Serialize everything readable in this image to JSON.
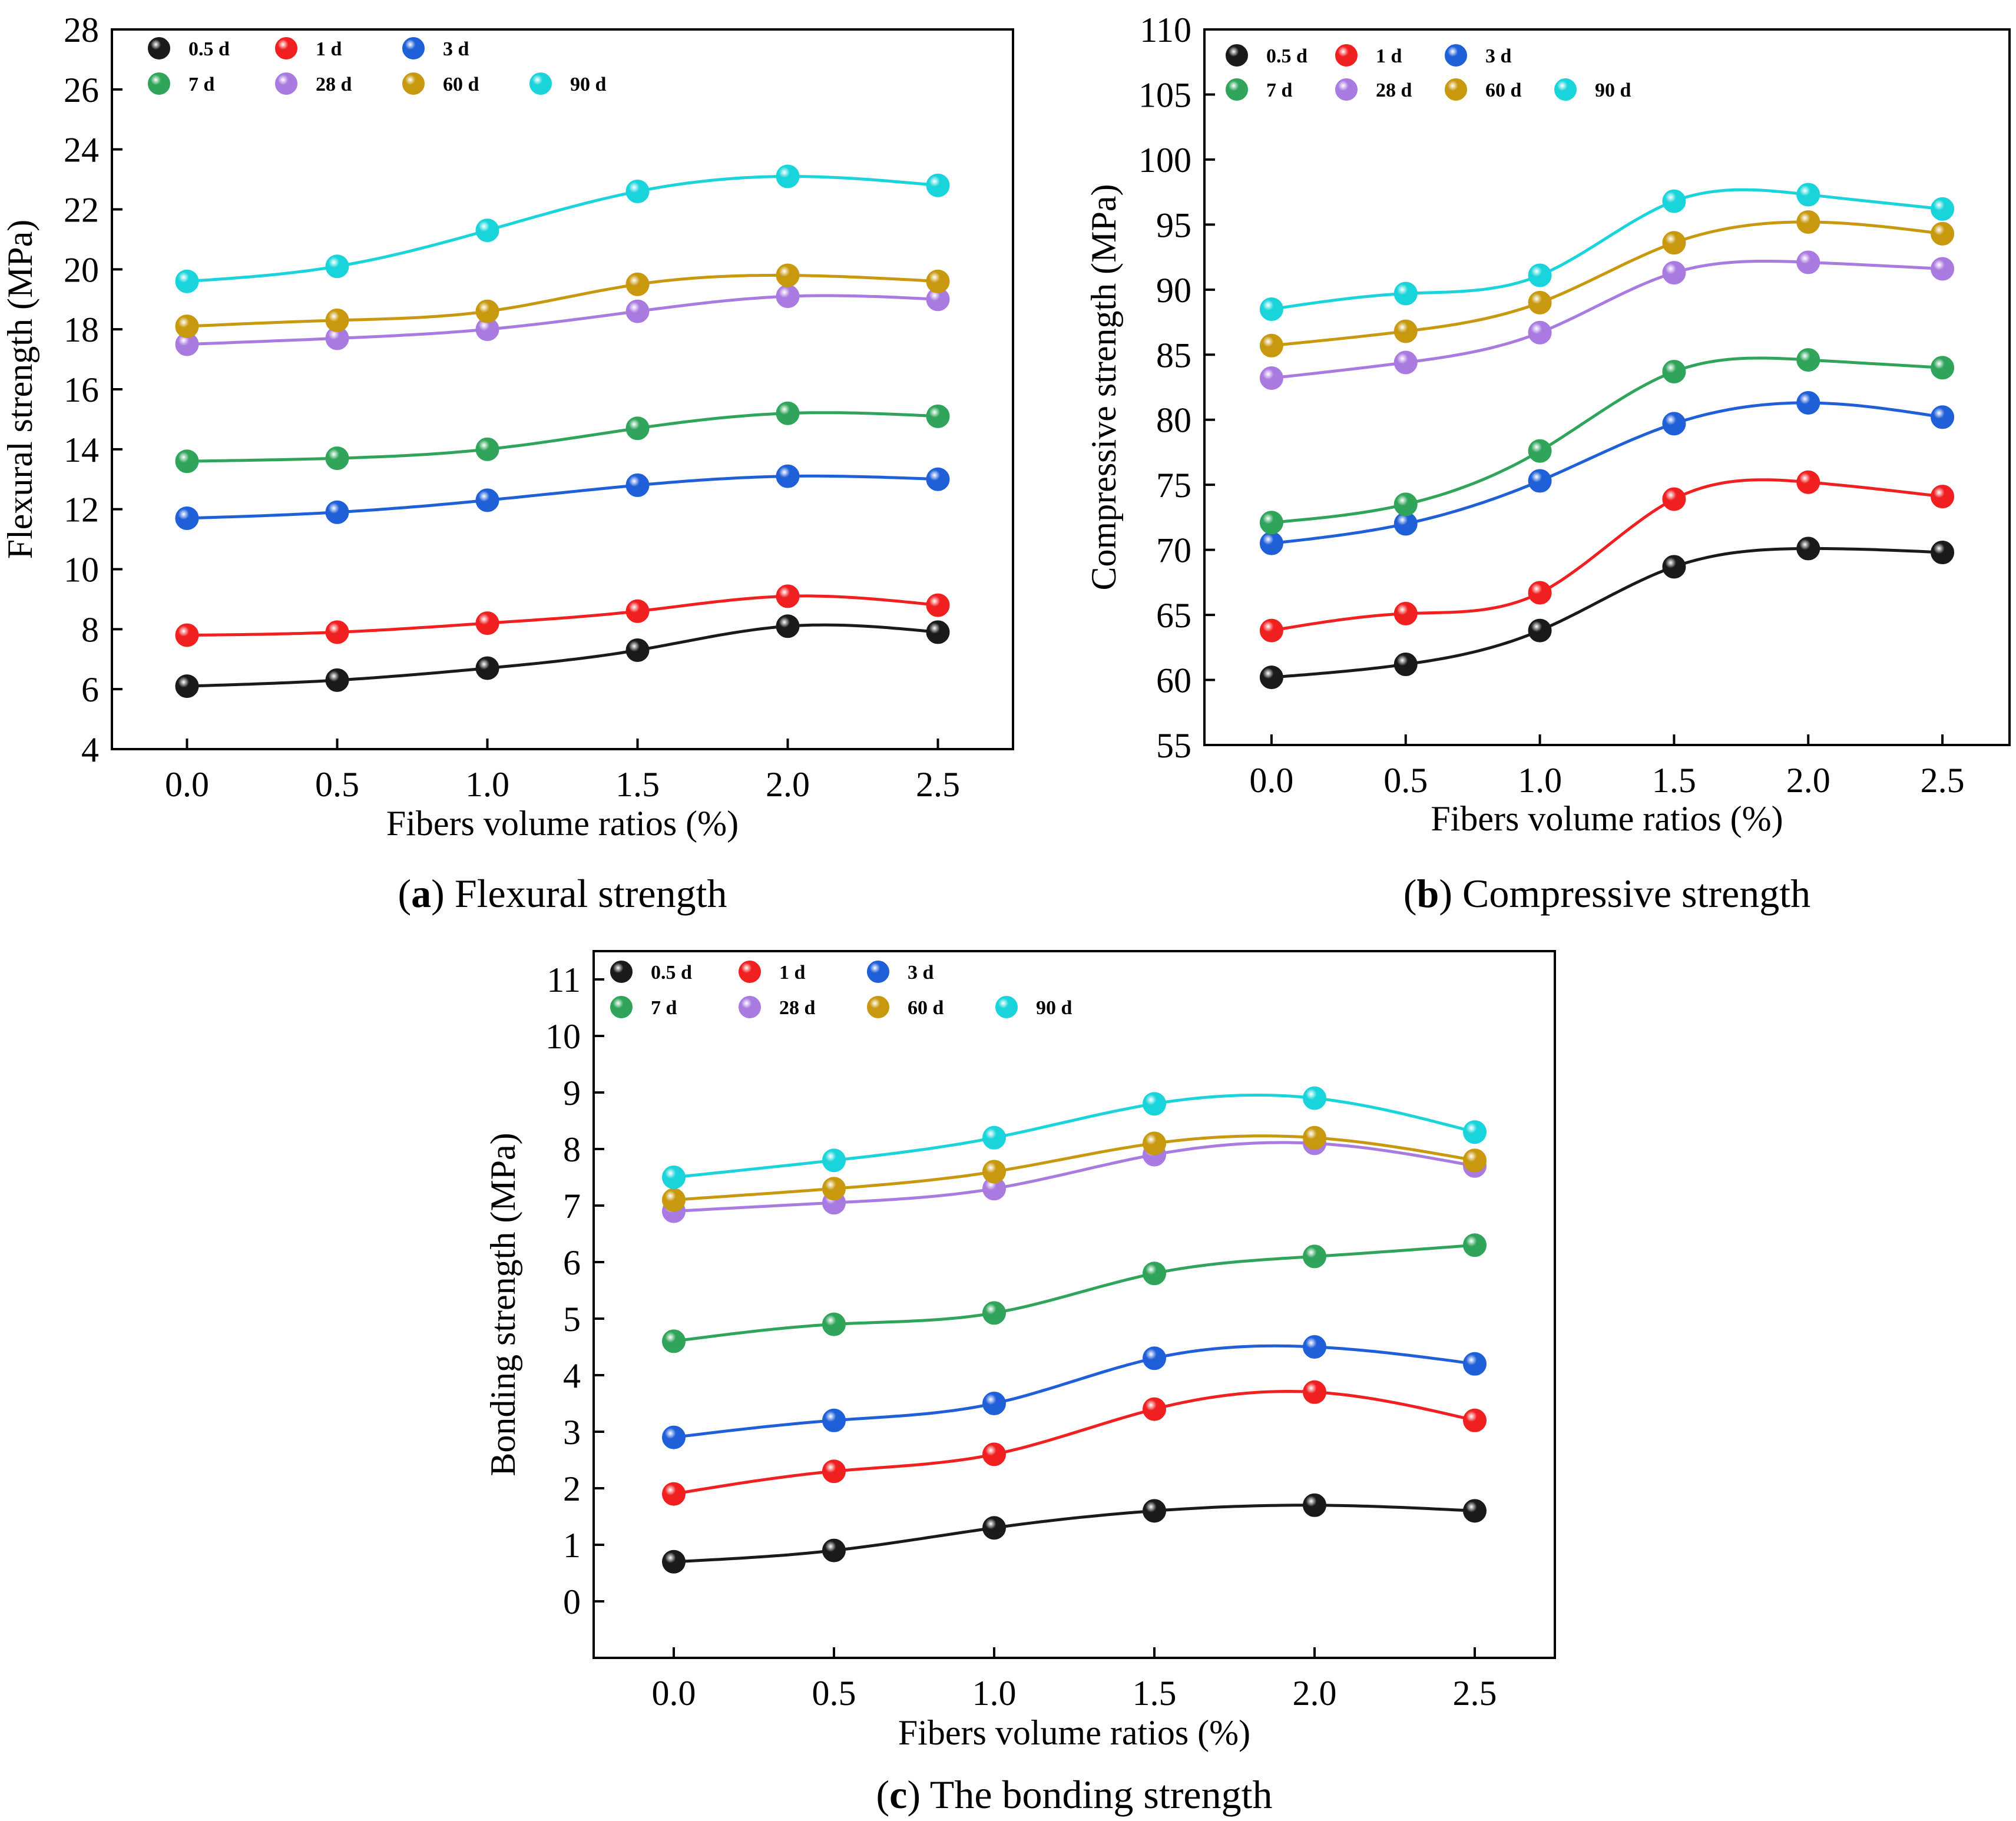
{
  "colors": {
    "0.5 d": "#1a1a1a",
    "1 d": "#f02020",
    "3 d": "#1f5fd8",
    "7 d": "#2fa45a",
    "28 d": "#a97be0",
    "60 d": "#c8980f",
    "90 d": "#19d4da"
  },
  "chart_data": [
    {
      "id": "a",
      "type": "scatter",
      "caption_letter": "a",
      "caption_text": "Flexural strength",
      "xlabel": "Fibers volume ratios (%)",
      "ylabel": "Flexural strength (MPa)",
      "xlim": [
        -0.25,
        2.75
      ],
      "ylim": [
        4,
        28
      ],
      "xticks": [
        "0.0",
        "0.5",
        "1.0",
        "1.5",
        "2.0",
        "2.5"
      ],
      "yticks": [
        "4",
        "6",
        "8",
        "10",
        "12",
        "14",
        "16",
        "18",
        "20",
        "22",
        "24",
        "26",
        "28"
      ],
      "x": [
        0.0,
        0.5,
        1.0,
        1.5,
        2.0,
        2.5
      ],
      "legend_position": "top-left",
      "series": [
        {
          "name": "0.5 d",
          "values": [
            6.1,
            6.3,
            6.7,
            7.3,
            8.1,
            7.9
          ]
        },
        {
          "name": "1 d",
          "values": [
            7.8,
            7.9,
            8.2,
            8.6,
            9.1,
            8.8
          ]
        },
        {
          "name": "3 d",
          "values": [
            11.7,
            11.9,
            12.3,
            12.8,
            13.1,
            13.0
          ]
        },
        {
          "name": "7 d",
          "values": [
            13.6,
            13.7,
            14.0,
            14.7,
            15.2,
            15.1
          ]
        },
        {
          "name": "28 d",
          "values": [
            17.5,
            17.7,
            18.0,
            18.6,
            19.1,
            19.0
          ]
        },
        {
          "name": "60 d",
          "values": [
            18.1,
            18.3,
            18.6,
            19.5,
            19.8,
            19.6
          ]
        },
        {
          "name": "90 d",
          "values": [
            19.6,
            20.1,
            21.3,
            22.6,
            23.1,
            22.8
          ]
        }
      ]
    },
    {
      "id": "b",
      "type": "scatter",
      "caption_letter": "b",
      "caption_text": "Compressive strength",
      "xlabel": "Fibers volume ratios (%)",
      "ylabel": "Compressive strength (MPa)",
      "xlim": [
        -0.25,
        2.75
      ],
      "ylim": [
        55,
        110
      ],
      "xticks": [
        "0.0",
        "0.5",
        "1.0",
        "1.5",
        "2.0",
        "2.5"
      ],
      "yticks": [
        "55",
        "60",
        "65",
        "70",
        "75",
        "80",
        "85",
        "90",
        "95",
        "100",
        "105",
        "110"
      ],
      "x": [
        0.0,
        0.5,
        1.0,
        1.5,
        2.0,
        2.5
      ],
      "legend_position": "top-left",
      "series": [
        {
          "name": "0.5 d",
          "values": [
            60.2,
            61.2,
            63.8,
            68.7,
            70.1,
            69.8
          ]
        },
        {
          "name": "1 d",
          "values": [
            63.8,
            65.1,
            66.7,
            73.9,
            75.2,
            74.1
          ]
        },
        {
          "name": "3 d",
          "values": [
            70.5,
            72.0,
            75.3,
            79.7,
            81.3,
            80.2
          ]
        },
        {
          "name": "7 d",
          "values": [
            72.1,
            73.5,
            77.6,
            83.7,
            84.6,
            84.0
          ]
        },
        {
          "name": "28 d",
          "values": [
            83.2,
            84.4,
            86.7,
            91.3,
            92.1,
            91.6
          ]
        },
        {
          "name": "60 d",
          "values": [
            85.7,
            86.8,
            89.0,
            93.6,
            95.2,
            94.3
          ]
        },
        {
          "name": "90 d",
          "values": [
            88.5,
            89.7,
            91.1,
            96.8,
            97.3,
            96.2
          ]
        }
      ]
    },
    {
      "id": "c",
      "type": "scatter",
      "caption_letter": "c",
      "caption_text": "The bonding strength",
      "xlabel": "Fibers volume ratios (%)",
      "ylabel": "Bonding strength (MPa)",
      "xlim": [
        -0.25,
        2.75
      ],
      "ylim": [
        -1,
        11.5
      ],
      "xticks": [
        "0.0",
        "0.5",
        "1.0",
        "1.5",
        "2.0",
        "2.5"
      ],
      "yticks": [
        "0",
        "1",
        "2",
        "3",
        "4",
        "5",
        "6",
        "7",
        "8",
        "9",
        "10",
        "11"
      ],
      "x": [
        0.0,
        0.5,
        1.0,
        1.5,
        2.0,
        2.5
      ],
      "legend_position": "top-left",
      "series": [
        {
          "name": "0.5 d",
          "values": [
            0.7,
            0.9,
            1.3,
            1.6,
            1.7,
            1.6
          ]
        },
        {
          "name": "1 d",
          "values": [
            1.9,
            2.3,
            2.6,
            3.4,
            3.7,
            3.2
          ]
        },
        {
          "name": "3 d",
          "values": [
            2.9,
            3.2,
            3.5,
            4.3,
            4.5,
            4.2
          ]
        },
        {
          "name": "7 d",
          "values": [
            4.6,
            4.9,
            5.1,
            5.8,
            6.1,
            6.3
          ]
        },
        {
          "name": "28 d",
          "values": [
            6.9,
            7.05,
            7.3,
            7.9,
            8.1,
            7.7
          ]
        },
        {
          "name": "60 d",
          "values": [
            7.1,
            7.3,
            7.6,
            8.1,
            8.2,
            7.8
          ]
        },
        {
          "name": "90 d",
          "values": [
            7.5,
            7.8,
            8.2,
            8.8,
            8.9,
            8.3
          ]
        }
      ]
    }
  ]
}
